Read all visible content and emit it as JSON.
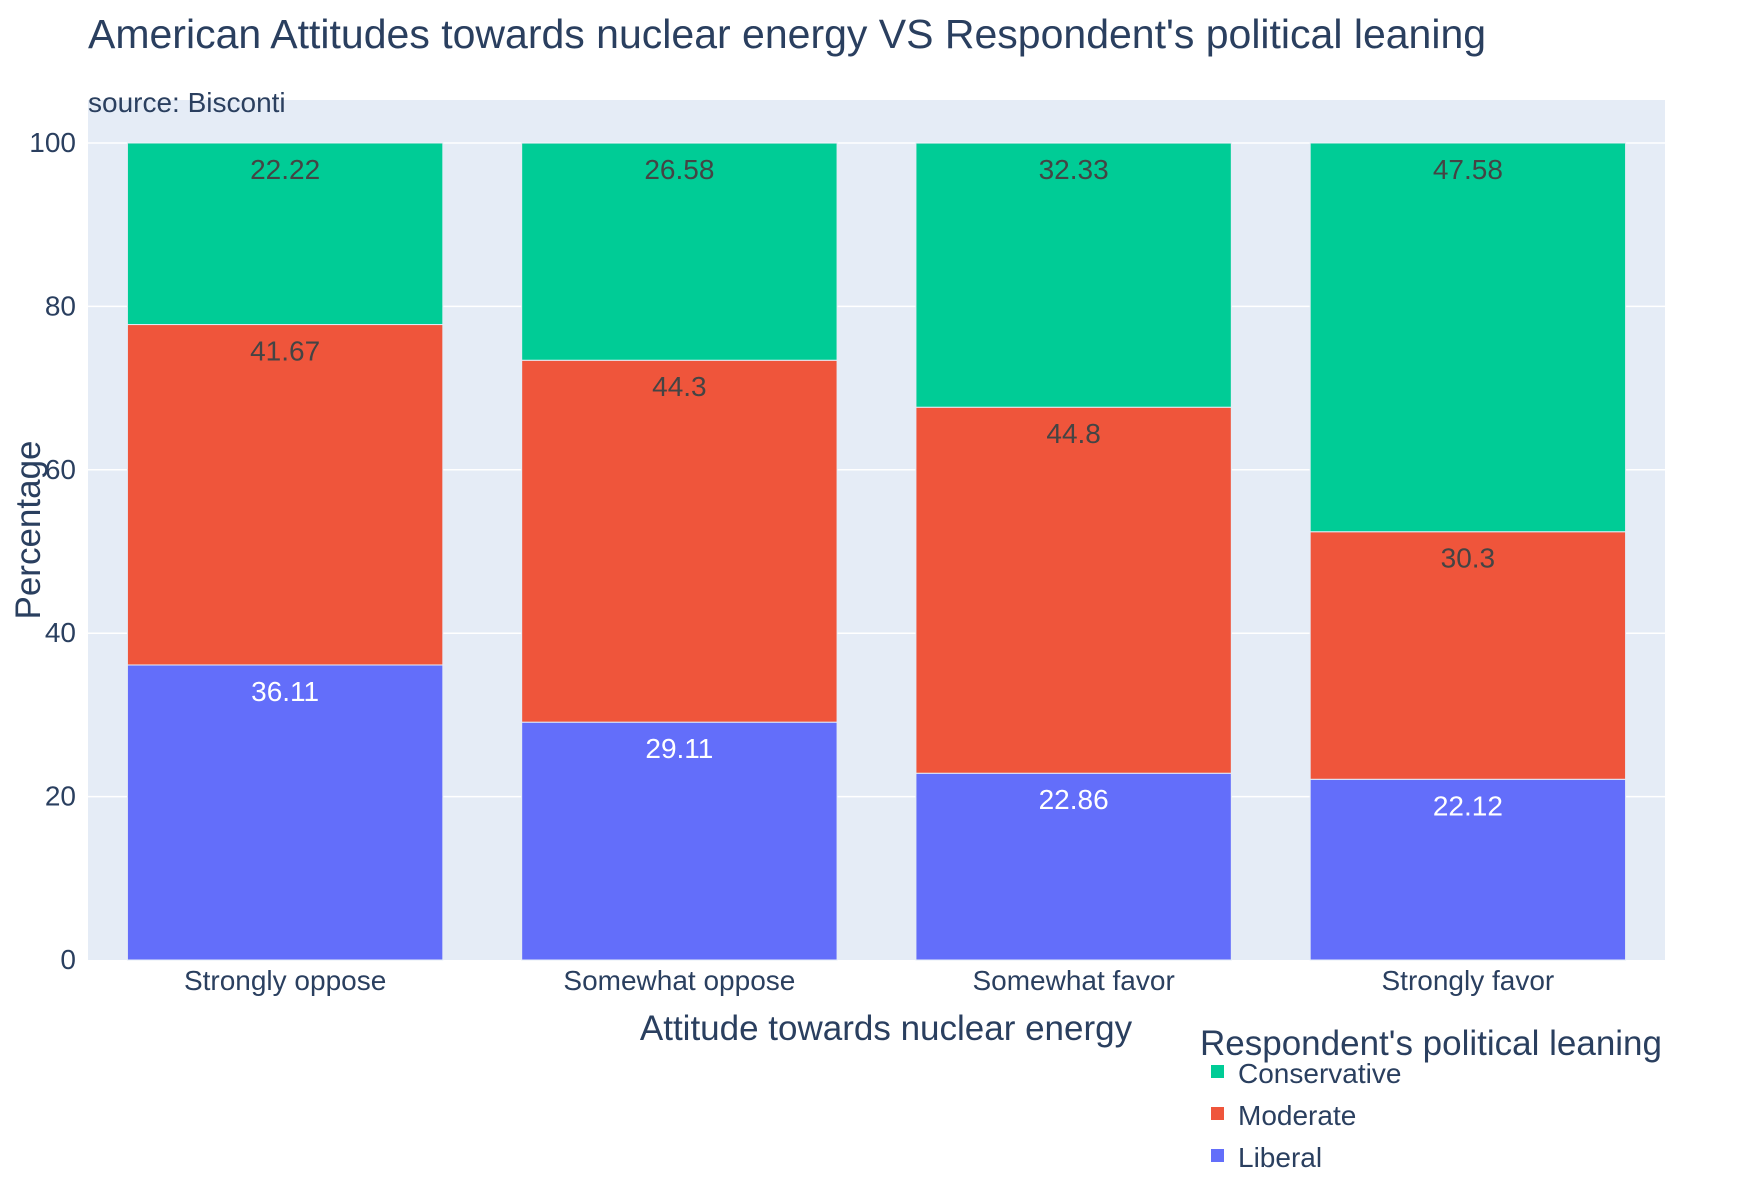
{
  "chart_data": {
    "type": "bar",
    "stacked": true,
    "title": "American Attitudes towards nuclear energy VS Respondent's political leaning",
    "subtitle": "source: Bisconti",
    "xlabel": "Attitude towards nuclear energy",
    "ylabel": "Percentage",
    "ylim": [
      0,
      100
    ],
    "yticks": [
      "0",
      "20",
      "40",
      "60",
      "80",
      "100"
    ],
    "categories": [
      "Strongly oppose",
      "Somewhat oppose",
      "Somewhat favor",
      "Strongly favor"
    ],
    "series": [
      {
        "name": "Liberal",
        "color": "#636efa",
        "label_color": "#ffffff",
        "values": [
          36.11,
          29.11,
          22.86,
          22.12
        ],
        "labels": [
          "36.11",
          "29.11",
          "22.86",
          "22.12"
        ]
      },
      {
        "name": "Moderate",
        "color": "#ef553b",
        "label_color": "#444444",
        "values": [
          41.67,
          44.3,
          44.8,
          30.3
        ],
        "labels": [
          "41.67",
          "44.3",
          "44.8",
          "30.3"
        ]
      },
      {
        "name": "Conservative",
        "color": "#00cc96",
        "label_color": "#444444",
        "values": [
          22.22,
          26.58,
          32.33,
          47.58
        ],
        "labels": [
          "22.22",
          "26.58",
          "32.33",
          "47.58"
        ]
      }
    ],
    "legend": {
      "title": "Respondent's political leaning",
      "placement": "bottom-right",
      "order": [
        "Conservative",
        "Moderate",
        "Liberal"
      ]
    },
    "grid": true,
    "colors": {
      "plot_bg": "#e5ecf6",
      "grid": "#ffffff",
      "text": "#2a3f5f"
    }
  }
}
